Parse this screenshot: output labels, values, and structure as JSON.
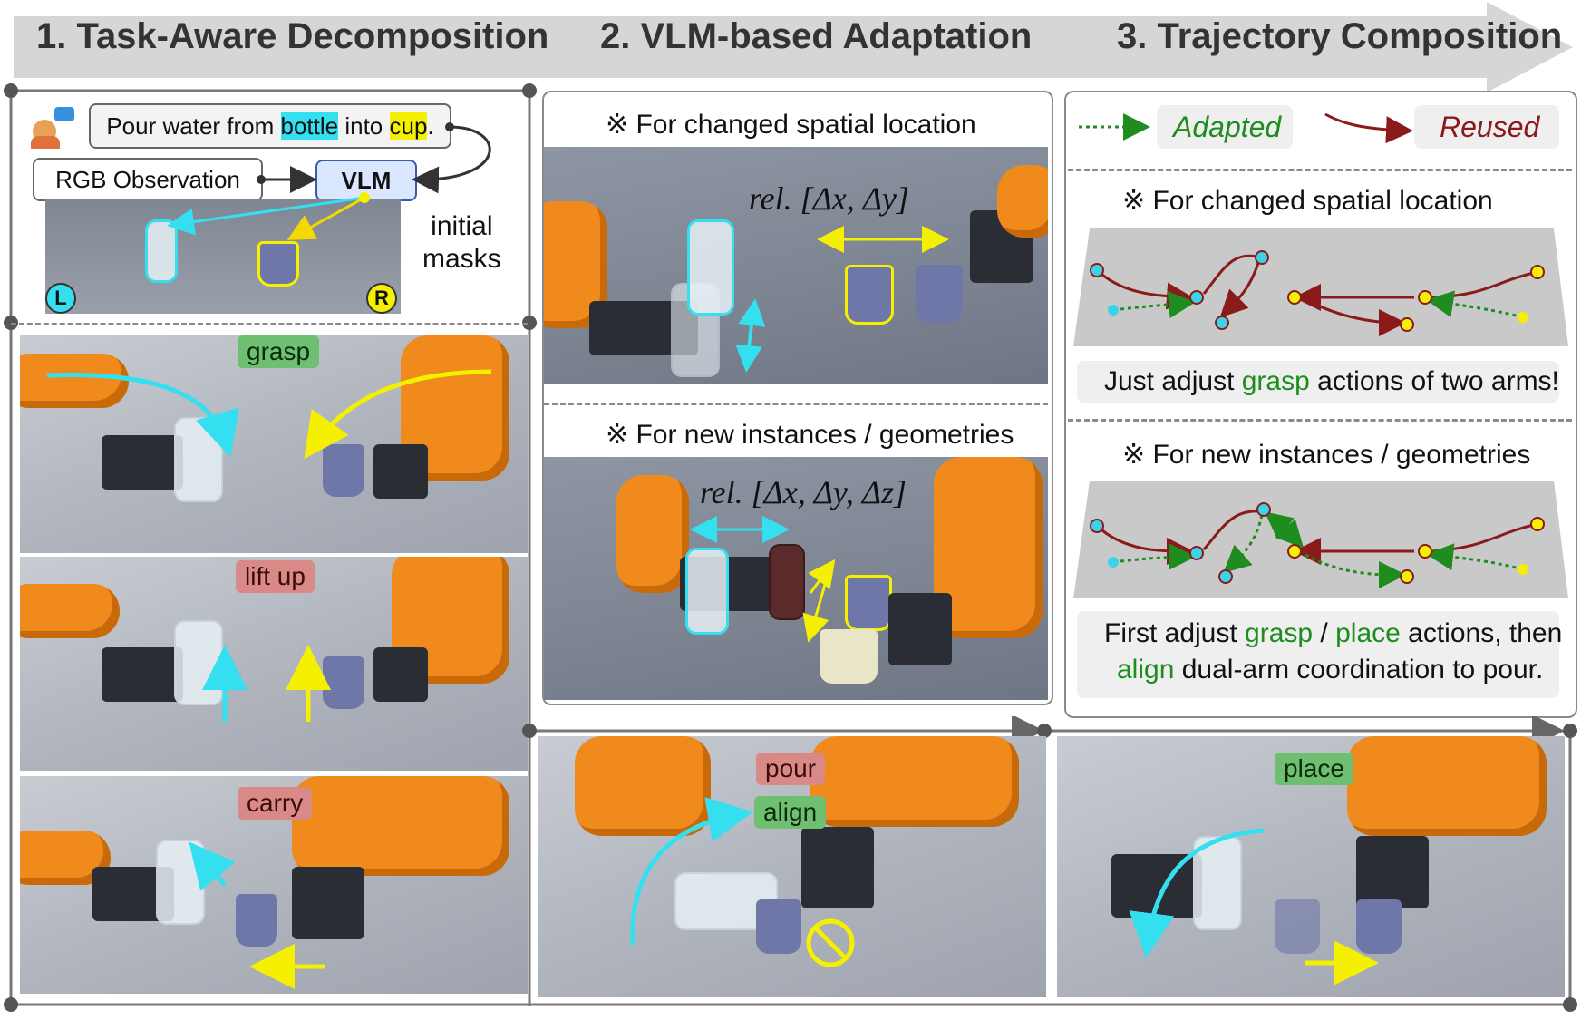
{
  "header": {
    "stage1": "1. Task-Aware Decomposition",
    "stage2": "2. VLM-based Adaptation",
    "stage3": "3. Trajectory Composition"
  },
  "left_panel": {
    "instruction_prefix": "Pour water from ",
    "instruction_obj1": "bottle",
    "instruction_mid": " into ",
    "instruction_obj2": "cup",
    "instruction_suffix": ".",
    "rgb_label": "RGB Observation",
    "vlm_label": "VLM",
    "initial_masks": "initial\nmasks",
    "arm_left": "L",
    "arm_right": "R",
    "steps": [
      "grasp",
      "lift up",
      "carry"
    ]
  },
  "mid_panel": {
    "section1_title": "※ For changed spatial location",
    "section1_formula": "rel. [Δx, Δy]",
    "section2_title": "※ For new instances / geometries",
    "section2_formula": "rel. [Δx, Δy, Δz]"
  },
  "right_panel": {
    "legend_adapted": "Adapted",
    "legend_reused": "Reused",
    "section1_title": "※ For changed spatial location",
    "section1_caption_a": "Just adjust ",
    "section1_caption_b": "grasp",
    "section1_caption_c": " actions of two arms!",
    "section2_title": "※ For new instances / geometries",
    "section2_caption_a": "First adjust ",
    "section2_caption_b": "grasp",
    "section2_caption_c": " / ",
    "section2_caption_d": "place",
    "section2_caption_e": " actions, then",
    "section2_caption_f": "align",
    "section2_caption_g": " dual-arm coordination to pour."
  },
  "bottom_row": {
    "pour": "pour",
    "align": "align",
    "place": "place"
  },
  "colors": {
    "adapted": "#1f8c1f",
    "reused": "#8b1a1a",
    "cyan": "#34e0f0",
    "yellow": "#f5f000",
    "robot": "#f08a1c"
  }
}
